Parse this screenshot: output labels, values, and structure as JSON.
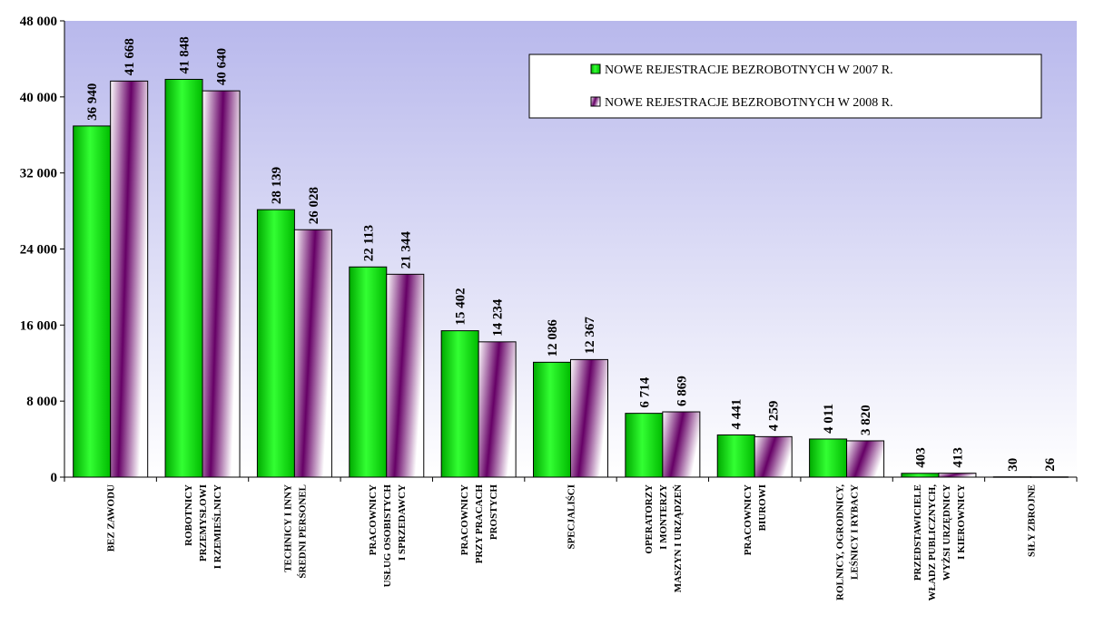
{
  "chart_data": {
    "type": "bar",
    "title": "",
    "xlabel": "",
    "ylabel": "",
    "ylim": [
      0,
      48000
    ],
    "yticks": [
      0,
      8000,
      16000,
      24000,
      32000,
      40000,
      48000
    ],
    "ytick_labels": [
      "0",
      "8 000",
      "16 000",
      "24 000",
      "32 000",
      "40 000",
      "48 000"
    ],
    "grid": false,
    "legend_position": "top-right",
    "categories": [
      [
        "BEZ ZAWODU"
      ],
      [
        "ROBOTNICY",
        "PRZEMYSŁOWI",
        "I RZEMIEŚLNICY"
      ],
      [
        "TECHNICY I INNY",
        "ŚREDNI PERSONEL"
      ],
      [
        "PRACOWNICY",
        "USŁUG OSOBISTYCH",
        "I SPRZEDAWCY"
      ],
      [
        "PRACOWNICY",
        "PRZY PRACACH",
        "PROSTYCH"
      ],
      [
        "SPECJALIŚCI"
      ],
      [
        "OPERATORZY",
        "I MONTERZY",
        "MASZYN I URZĄDZEŃ"
      ],
      [
        "PRACOWNICY",
        "BIUROWI"
      ],
      [
        "ROLNICY, OGRODNICY,",
        "LEŚNICY I RYBACY"
      ],
      [
        "PRZEDSTAWICIELE",
        "WŁADZ PUBLICZNYCH,",
        "WYŻSI URZĘDNICY",
        "I KIEROWNICY"
      ],
      [
        "SIŁY ZBROJNE"
      ]
    ],
    "series": [
      {
        "name": "NOWE REJESTRACJE BEZROBOTNYCH W 2007 R.",
        "values": [
          36940,
          41848,
          28139,
          22113,
          15402,
          12086,
          6714,
          4441,
          4011,
          403,
          30
        ],
        "labels": [
          "36 940",
          "41 848",
          "28 139",
          "22 113",
          "15 402",
          "12 086",
          "6 714",
          "4 441",
          "4 011",
          "403",
          "30"
        ],
        "color": "#00cc00"
      },
      {
        "name": "NOWE REJESTRACJE BEZROBOTNYCH W 2008 R.",
        "values": [
          41668,
          40640,
          26028,
          21344,
          14234,
          12367,
          6869,
          4259,
          3820,
          413,
          26
        ],
        "labels": [
          "41 668",
          "40 640",
          "26 028",
          "21 344",
          "14 234",
          "12 367",
          "6 869",
          "4 259",
          "3 820",
          "413",
          "26"
        ],
        "color": "#660066"
      }
    ]
  }
}
